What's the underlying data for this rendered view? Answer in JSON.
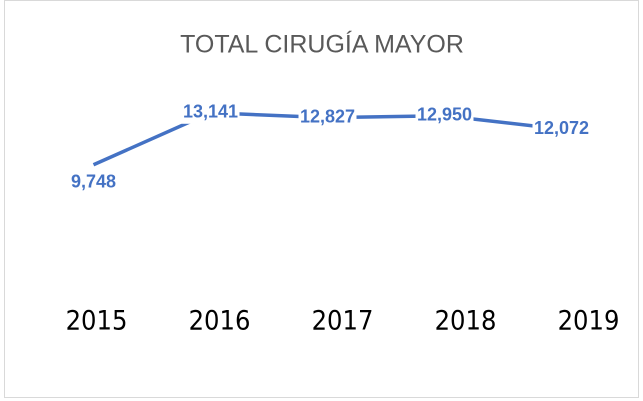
{
  "chart_data": {
    "type": "line",
    "title": "TOTAL CIRUGÍA MAYOR",
    "categories": [
      "2015",
      "2016",
      "2017",
      "2018",
      "2019"
    ],
    "series": [
      {
        "name": "TOTAL CIRUGÍA MAYOR",
        "color": "#4472c4",
        "values": [
          9748,
          13141,
          12827,
          12950,
          12072
        ],
        "value_labels": [
          "9,748",
          "13,141",
          "12,827",
          "12,950",
          "12,072"
        ]
      }
    ],
    "ylim": [
      0,
      16000
    ]
  }
}
